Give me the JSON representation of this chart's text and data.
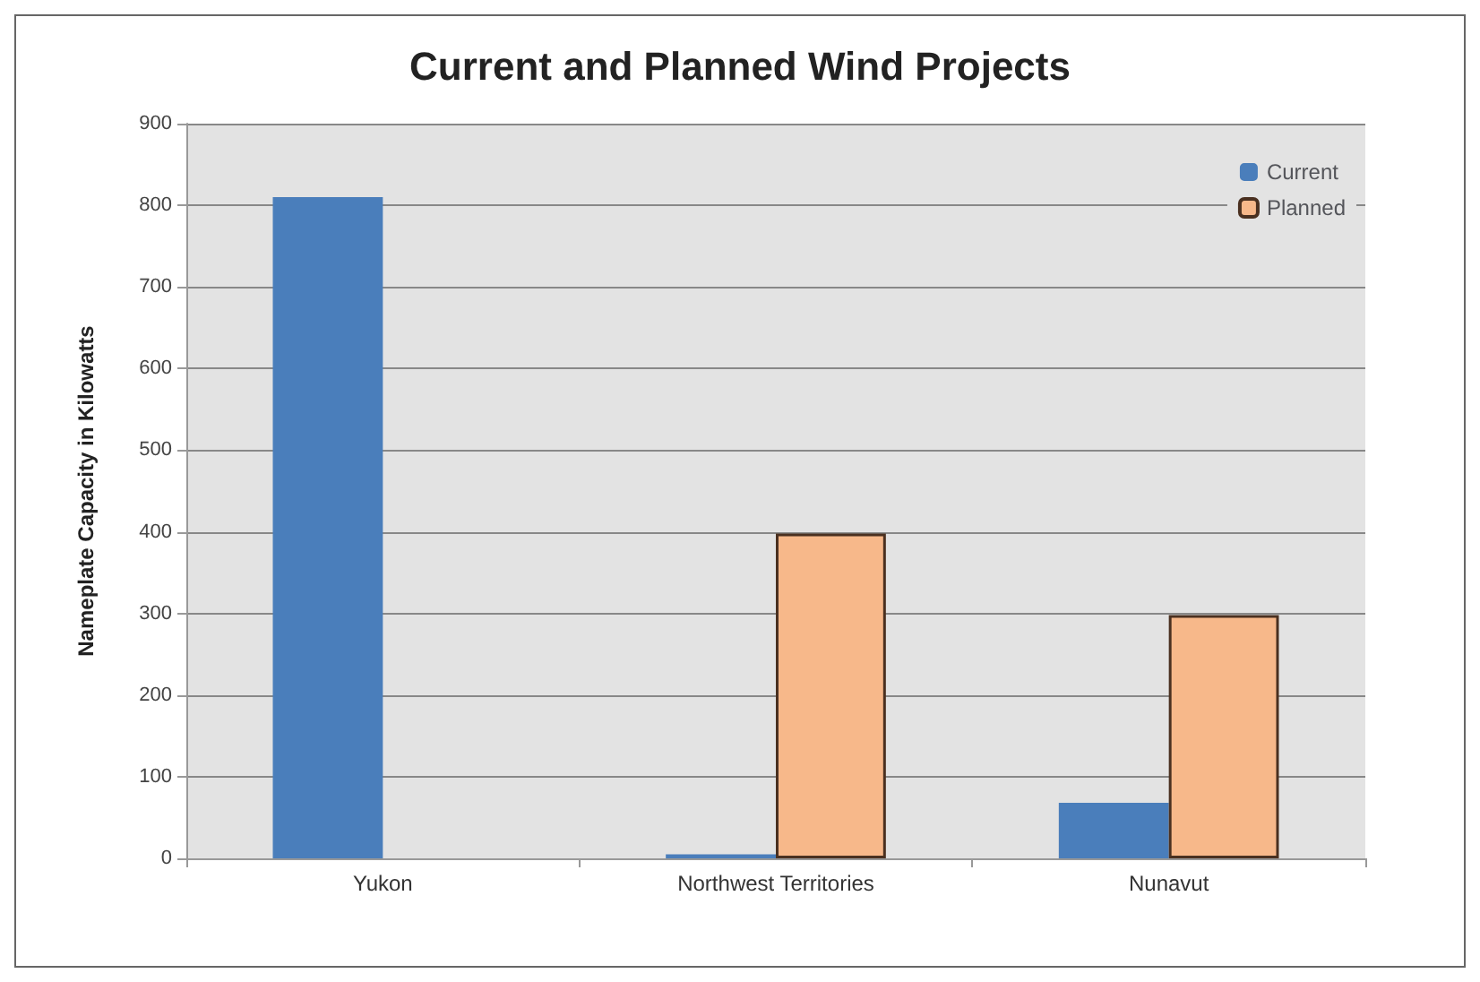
{
  "chart_data": {
    "type": "bar",
    "title": "Current and Planned Wind Projects",
    "ylabel": "Nameplate Capacity in Kilowatts",
    "categories": [
      "Yukon",
      "Northwest Territories",
      "Nunavut"
    ],
    "series": [
      {
        "name": "Current",
        "color": "#4a7ebb",
        "values": [
          810,
          5,
          68
        ]
      },
      {
        "name": "Planned",
        "color": "#f7b88a",
        "values": [
          null,
          398,
          298
        ]
      }
    ],
    "ylim": [
      0,
      900
    ],
    "yticks": [
      0,
      100,
      200,
      300,
      400,
      500,
      600,
      700,
      800,
      900
    ],
    "grid": "y",
    "legend": "top right"
  }
}
